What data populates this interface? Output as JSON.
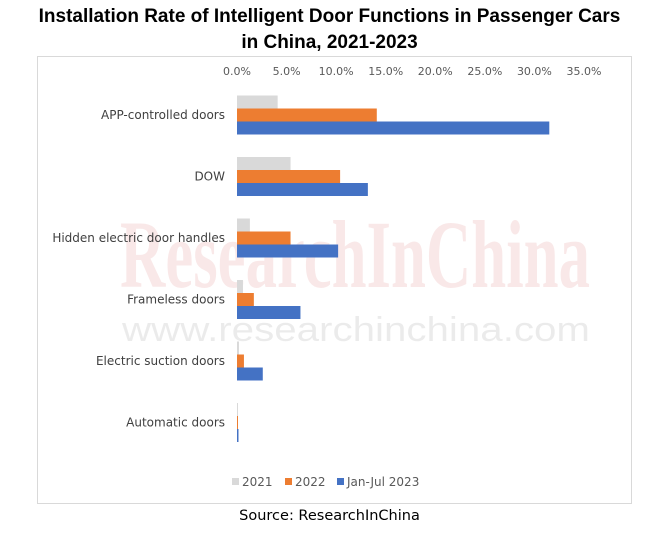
{
  "title_line1": "Installation Rate of Intelligent Door Functions in Passenger Cars",
  "title_line2": "in China, 2021-2023",
  "source": "Source: ResearchInChina",
  "watermark": {
    "main": "ResearchInChina",
    "url": "www.researchinchina.com"
  },
  "colors": {
    "2021": "#d9d9d9",
    "2022": "#ed7d31",
    "Jan-Jul 2023": "#4472c4"
  },
  "chart_data": {
    "type": "bar",
    "orientation": "horizontal",
    "title": "Installation Rate of Intelligent Door Functions in Passenger Cars in China, 2021-2023",
    "categories": [
      "APP-controlled doors",
      "DOW",
      "Hidden electric door handles",
      "Frameless doors",
      "Electric suction doors",
      "Automatic doors"
    ],
    "series": [
      {
        "name": "2021",
        "color": "#d9d9d9",
        "values": [
          4.1,
          5.4,
          1.3,
          0.6,
          0.2,
          0.05
        ]
      },
      {
        "name": "2022",
        "color": "#ed7d31",
        "values": [
          14.1,
          10.4,
          5.4,
          1.7,
          0.7,
          0.1
        ]
      },
      {
        "name": "Jan-Jul 2023",
        "color": "#4472c4",
        "values": [
          31.5,
          13.2,
          10.2,
          6.4,
          2.6,
          0.15
        ]
      }
    ],
    "xlim": [
      0,
      35
    ],
    "x_ticks": [
      "0.0%",
      "5.0%",
      "10.0%",
      "15.0%",
      "20.0%",
      "25.0%",
      "30.0%",
      "35.0%"
    ],
    "x_axis_position": "top",
    "grid": false,
    "legend": "bottom"
  }
}
